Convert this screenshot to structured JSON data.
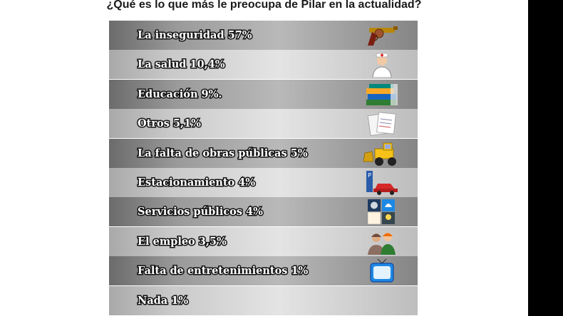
{
  "chart_data": {
    "type": "table",
    "title": "¿Qué es lo que más le preocupa de Pilar en la actualidad?",
    "rows": [
      {
        "label": "La inseguridad 57%",
        "category": "La inseguridad",
        "value": 57,
        "icon": "revolver-icon"
      },
      {
        "label": "La salud 10,4%",
        "category": "La salud",
        "value": 10.4,
        "icon": "nurse-icon"
      },
      {
        "label": "Educación 9%.",
        "category": "Educación",
        "value": 9,
        "icon": "books-icon"
      },
      {
        "label": "Otros 5,1%",
        "category": "Otros",
        "value": 5.1,
        "icon": "documents-icon"
      },
      {
        "label": "La falta de obras públicas 5%",
        "category": "La falta de obras públicas",
        "value": 5,
        "icon": "bulldozer-icon"
      },
      {
        "label": "Estacionamiento 4%",
        "category": "Estacionamiento",
        "value": 4,
        "icon": "parking-car-icon"
      },
      {
        "label": "Servicios públicos 4%",
        "category": "Servicios públicos",
        "value": 4,
        "icon": "public-services-icon"
      },
      {
        "label": "El empleo 3,5%",
        "category": "El empleo",
        "value": 3.5,
        "icon": "workers-icon"
      },
      {
        "label": "Falta de entretenimientos 1%",
        "category": "Falta de entretenimientos",
        "value": 1,
        "icon": "television-icon"
      },
      {
        "label": "Nada 1%",
        "category": "Nada",
        "value": 1,
        "icon": ""
      }
    ],
    "unit": "%"
  }
}
